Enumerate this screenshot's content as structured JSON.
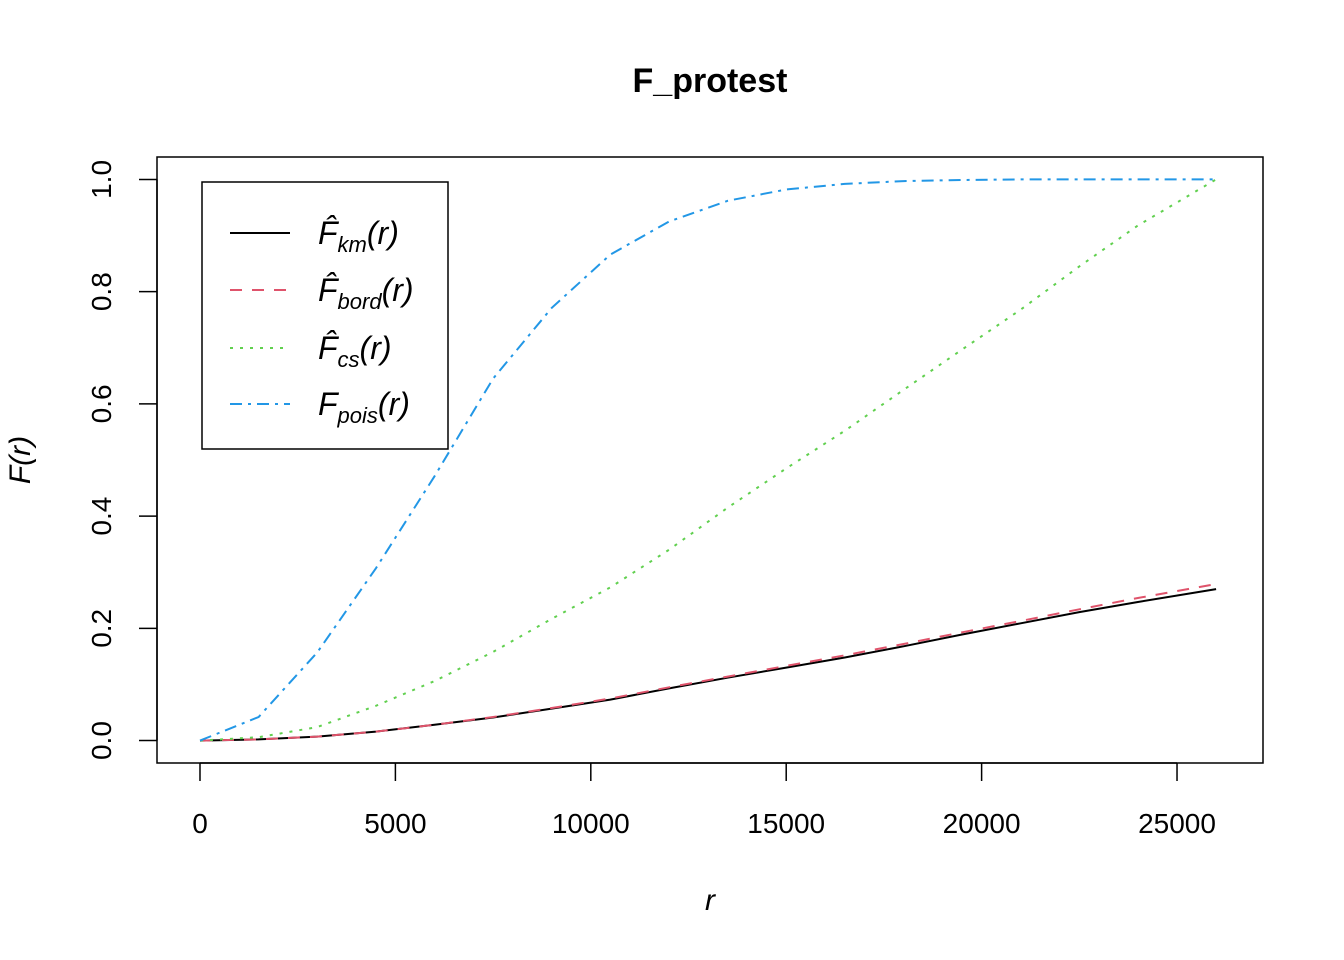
{
  "chart_data": {
    "type": "line",
    "title": "F_protest",
    "xlabel": "r",
    "ylabel": "F(r)",
    "xlim": [
      -1100,
      27200
    ],
    "ylim": [
      -0.04,
      1.04
    ],
    "x_ticks": [
      0,
      5000,
      10000,
      15000,
      20000,
      25000
    ],
    "y_ticks": [
      0.0,
      0.2,
      0.4,
      0.6,
      0.8,
      1.0
    ],
    "x_tick_labels": [
      "0",
      "5000",
      "10000",
      "15000",
      "20000",
      "25000"
    ],
    "y_tick_labels": [
      "0.0",
      "0.2",
      "0.4",
      "0.6",
      "0.8",
      "1.0"
    ],
    "grid": false,
    "legend_position": "top-left",
    "series": [
      {
        "key": "km",
        "label_main": "F̂",
        "label_sub": "km",
        "label_tail": "(r)",
        "color": "#000000",
        "dash": "",
        "x": [
          0,
          1500,
          3000,
          4500,
          6000,
          7500,
          9000,
          10500,
          12000,
          13500,
          15000,
          16500,
          18000,
          19500,
          21000,
          22500,
          24000,
          26000
        ],
        "y": [
          0,
          0.002,
          0.007,
          0.016,
          0.028,
          0.041,
          0.057,
          0.073,
          0.093,
          0.112,
          0.13,
          0.148,
          0.168,
          0.189,
          0.209,
          0.229,
          0.247,
          0.27
        ]
      },
      {
        "key": "bord",
        "label_main": "F̂",
        "label_sub": "bord",
        "label_tail": "(r)",
        "color": "#DF536B",
        "dash": "12,10",
        "x": [
          0,
          1500,
          3000,
          4500,
          6000,
          7500,
          9000,
          10500,
          12000,
          13500,
          15000,
          16500,
          18000,
          19500,
          21000,
          22500,
          24000,
          26000
        ],
        "y": [
          0,
          0.002,
          0.007,
          0.016,
          0.028,
          0.042,
          0.058,
          0.075,
          0.095,
          0.114,
          0.133,
          0.152,
          0.172,
          0.193,
          0.213,
          0.234,
          0.254,
          0.279
        ]
      },
      {
        "key": "cs",
        "label_main": "F̂",
        "label_sub": "cs",
        "label_tail": "(r)",
        "color": "#61D04F",
        "dash": "3,7",
        "x": [
          0,
          1500,
          3000,
          4500,
          6000,
          7500,
          9000,
          10500,
          12000,
          13500,
          15000,
          16500,
          18000,
          19500,
          21000,
          22500,
          24000,
          26000
        ],
        "y": [
          0,
          0.006,
          0.024,
          0.062,
          0.106,
          0.158,
          0.217,
          0.273,
          0.34,
          0.415,
          0.485,
          0.552,
          0.625,
          0.697,
          0.768,
          0.845,
          0.918,
          1.0
        ]
      },
      {
        "key": "pois",
        "label_main": "F",
        "label_sub": "pois",
        "label_tail": "(r)",
        "color": "#2297E6",
        "dash": "12,6,3,6",
        "x": [
          0,
          1500,
          3000,
          4500,
          6000,
          7500,
          9000,
          10500,
          12000,
          13500,
          15000,
          16500,
          18000,
          19500,
          21000,
          22500,
          24000,
          26000
        ],
        "y": [
          0,
          0.042,
          0.157,
          0.307,
          0.471,
          0.645,
          0.771,
          0.866,
          0.925,
          0.962,
          0.982,
          0.992,
          0.997,
          0.999,
          1.0,
          1.0,
          1.0,
          1.0
        ]
      }
    ]
  }
}
